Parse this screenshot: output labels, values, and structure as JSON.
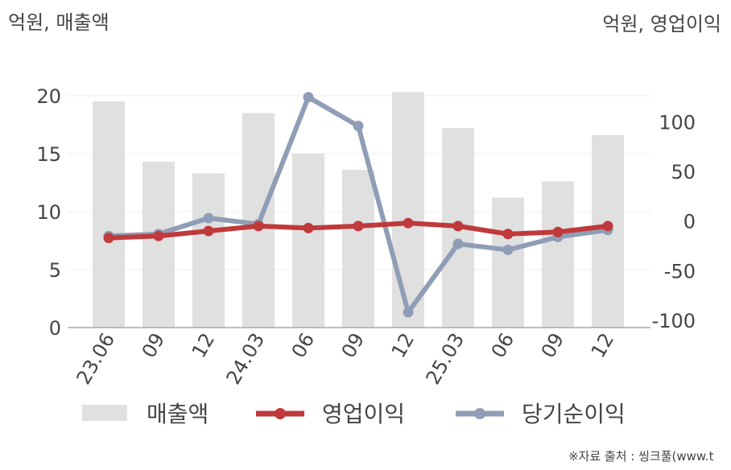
{
  "units": {
    "left": "억원, 매출액",
    "right": "억원, 영업이익"
  },
  "source": "※자료 출처 : 씽크풀(www.t",
  "colors": {
    "revenue_bar": "#e0e0e0",
    "operating_profit": "#c0393b",
    "net_income": "#8f9db6",
    "axis": "#aaaaaa",
    "grid": "#eeeeee",
    "text": "#444444"
  },
  "chart_data": {
    "type": "bar",
    "categories": [
      "23.06",
      "09",
      "12",
      "24.03",
      "06",
      "09",
      "12",
      "25.03",
      "06",
      "09",
      "12"
    ],
    "series": [
      {
        "name": "매출액",
        "type": "bar",
        "axis": "left",
        "values": [
          19.5,
          14.3,
          13.3,
          18.5,
          15.0,
          13.6,
          20.3,
          17.2,
          11.2,
          12.6,
          16.6
        ]
      },
      {
        "name": "영업이익",
        "type": "line",
        "axis": "right",
        "values": [
          -17,
          -15,
          -10,
          -5,
          -7,
          -5,
          -2,
          -5,
          -13,
          -11,
          -5
        ]
      },
      {
        "name": "당기순이익",
        "type": "line",
        "axis": "right",
        "values": [
          -15,
          -13,
          3,
          -3,
          125,
          96,
          -92,
          -23,
          -29,
          -16,
          -9
        ]
      }
    ],
    "y_left": {
      "lim": [
        0,
        22
      ],
      "ticks": [
        "0",
        "5",
        "10",
        "15",
        "20"
      ],
      "tick_values": [
        0,
        5,
        10,
        15,
        20
      ]
    },
    "y_right": {
      "lim": [
        -107.4,
        150
      ],
      "ticks": [
        "-100",
        "-50",
        "0",
        "50",
        "100"
      ],
      "tick_values": [
        -100,
        -50,
        0,
        50,
        100
      ]
    },
    "grid": true,
    "legend_position": "bottom"
  }
}
